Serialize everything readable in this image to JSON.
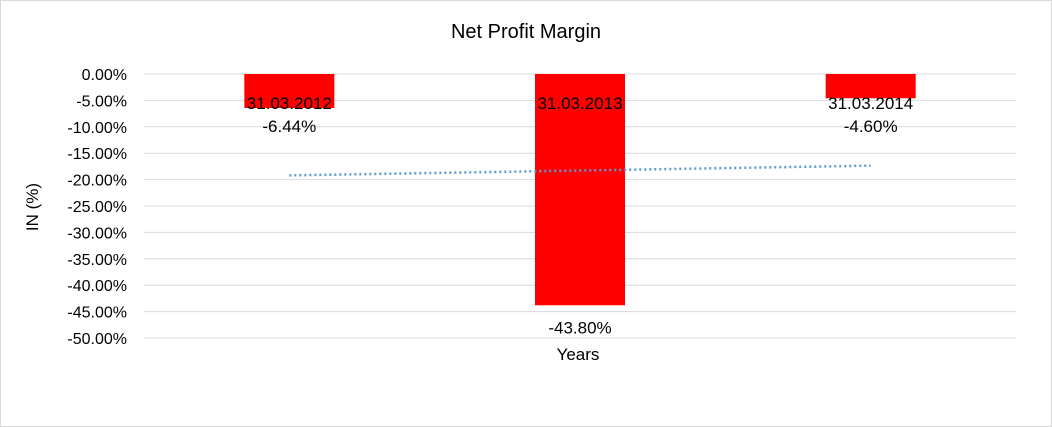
{
  "chart_data": {
    "type": "bar",
    "title": "Net Profit Margin",
    "xlabel": "Years",
    "ylabel": "IN (%)",
    "categories": [
      "31.03.2012",
      "31.03.2013",
      "31.03.2014"
    ],
    "values": [
      -6.44,
      -43.8,
      -4.6
    ],
    "data_labels": [
      "-6.44%",
      "-43.80%",
      "-4.60%"
    ],
    "ylim": [
      -50,
      0
    ],
    "yticks": [
      0,
      -5,
      -10,
      -15,
      -20,
      -25,
      -30,
      -35,
      -40,
      -45,
      -50
    ],
    "ytick_labels": [
      "0.00%",
      "-5.00%",
      "-10.00%",
      "-15.00%",
      "-20.00%",
      "-25.00%",
      "-30.00%",
      "-35.00%",
      "-40.00%",
      "-45.00%",
      "-50.00%"
    ],
    "grid": true,
    "legend": "none",
    "trendline": {
      "type": "linear",
      "style": "dotted",
      "color": "#5b9bd5"
    },
    "colors": {
      "bar": "#ff0000",
      "grid": "#d9d9d9",
      "text": "#000000"
    }
  }
}
